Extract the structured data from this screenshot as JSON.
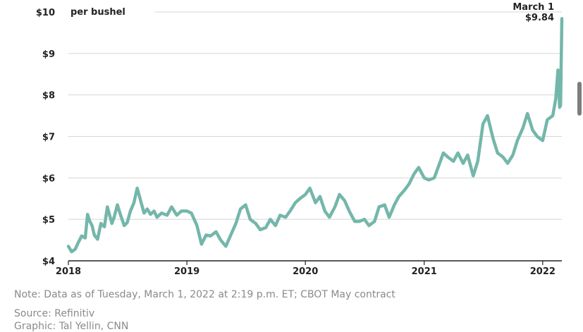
{
  "chart_data": {
    "type": "line",
    "unit_label": "per bushel",
    "y_ticks": [
      "$4",
      "$5",
      "$6",
      "$7",
      "$8",
      "$9",
      "$10"
    ],
    "ylim": [
      4,
      10
    ],
    "x_ticks": [
      "2018",
      "2019",
      "2020",
      "2021",
      "2022"
    ],
    "xlim": [
      "2018-01-01",
      "2022-03-01"
    ],
    "grid": "horizontal",
    "line_color": "#74b7aa",
    "annotation": {
      "label": "March 1",
      "value_label": "$9.84",
      "x": "2022-03-01",
      "y": 9.84
    },
    "series": [
      {
        "x": [
          "2018-01-01",
          "2018-01-11",
          "2018-01-22",
          "2018-02-01",
          "2018-02-11",
          "2018-02-22",
          "2018-03-01",
          "2018-03-08",
          "2018-03-15",
          "2018-03-22",
          "2018-04-01",
          "2018-04-11",
          "2018-04-22",
          "2018-05-01",
          "2018-05-08",
          "2018-05-15",
          "2018-05-22",
          "2018-06-01",
          "2018-06-11",
          "2018-06-22",
          "2018-07-01",
          "2018-07-11",
          "2018-07-22",
          "2018-08-01",
          "2018-08-08",
          "2018-08-15",
          "2018-08-22",
          "2018-09-01",
          "2018-09-11",
          "2018-09-22",
          "2018-10-01",
          "2018-10-15",
          "2018-11-01",
          "2018-11-15",
          "2018-12-01",
          "2018-12-15",
          "2019-01-01",
          "2019-01-15",
          "2019-02-01",
          "2019-02-15",
          "2019-03-01",
          "2019-03-15",
          "2019-04-01",
          "2019-04-15",
          "2019-05-01",
          "2019-05-15",
          "2019-06-01",
          "2019-06-15",
          "2019-07-01",
          "2019-07-15",
          "2019-08-01",
          "2019-08-15",
          "2019-09-01",
          "2019-09-15",
          "2019-10-01",
          "2019-10-15",
          "2019-11-01",
          "2019-11-15",
          "2019-12-01",
          "2019-12-15",
          "2020-01-01",
          "2020-01-15",
          "2020-02-01",
          "2020-02-15",
          "2020-03-01",
          "2020-03-15",
          "2020-04-01",
          "2020-04-15",
          "2020-05-01",
          "2020-05-15",
          "2020-06-01",
          "2020-06-15",
          "2020-07-01",
          "2020-07-15",
          "2020-08-01",
          "2020-08-15",
          "2020-09-01",
          "2020-09-15",
          "2020-10-01",
          "2020-10-15",
          "2020-11-01",
          "2020-11-15",
          "2020-12-01",
          "2020-12-15",
          "2021-01-01",
          "2021-01-15",
          "2021-02-01",
          "2021-02-15",
          "2021-03-01",
          "2021-03-15",
          "2021-04-01",
          "2021-04-15",
          "2021-05-01",
          "2021-05-15",
          "2021-06-01",
          "2021-06-15",
          "2021-07-01",
          "2021-07-15",
          "2021-08-01",
          "2021-08-15",
          "2021-09-01",
          "2021-09-15",
          "2021-10-01",
          "2021-10-15",
          "2021-11-01",
          "2021-11-15",
          "2021-12-01",
          "2021-12-15",
          "2022-01-01",
          "2022-01-15",
          "2022-02-01",
          "2022-02-10",
          "2022-02-17",
          "2022-02-22",
          "2022-02-25",
          "2022-03-01"
        ],
        "values": [
          4.35,
          4.22,
          4.28,
          4.45,
          4.6,
          4.55,
          5.12,
          4.95,
          4.85,
          4.62,
          4.52,
          4.9,
          4.82,
          5.3,
          5.1,
          4.9,
          5.05,
          5.35,
          5.1,
          4.85,
          4.92,
          5.2,
          5.4,
          5.75,
          5.55,
          5.35,
          5.15,
          5.25,
          5.12,
          5.2,
          5.05,
          5.15,
          5.1,
          5.3,
          5.1,
          5.2,
          5.2,
          5.15,
          4.85,
          4.4,
          4.62,
          4.6,
          4.7,
          4.5,
          4.35,
          4.6,
          4.9,
          5.25,
          5.35,
          5.0,
          4.9,
          4.75,
          4.8,
          5.0,
          4.85,
          5.1,
          5.05,
          5.2,
          5.4,
          5.5,
          5.6,
          5.75,
          5.4,
          5.55,
          5.2,
          5.05,
          5.3,
          5.6,
          5.45,
          5.2,
          4.95,
          4.95,
          5.0,
          4.85,
          4.95,
          5.3,
          5.35,
          5.05,
          5.35,
          5.55,
          5.7,
          5.85,
          6.1,
          6.25,
          6.0,
          5.95,
          6.0,
          6.3,
          6.6,
          6.5,
          6.4,
          6.6,
          6.35,
          6.55,
          6.05,
          6.4,
          7.3,
          7.5,
          6.95,
          6.6,
          6.5,
          6.35,
          6.55,
          6.9,
          7.2,
          7.55,
          7.15,
          7.0,
          6.9,
          7.4,
          7.5,
          7.9,
          8.6,
          7.7,
          7.75,
          9.84
        ]
      }
    ]
  },
  "footer": {
    "note": "Note: Data as of Tuesday, March 1, 2022 at 2:19 p.m. ET; CBOT May contract",
    "source": "Source: Refinitiv",
    "graphic": "Graphic: Tal Yellin, CNN"
  }
}
